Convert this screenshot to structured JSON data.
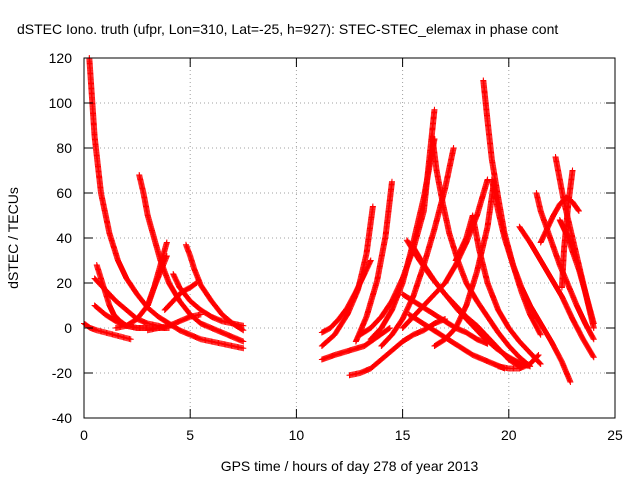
{
  "chart_data": {
    "type": "scatter",
    "title": "dSTEC Iono. truth (ufpr, Lon=310, Lat=-25, h=927): STEC-STEC_elemax in phase cont",
    "xlabel": "GPS time / hours of day 278 of year 2013",
    "ylabel": "dSTEC  / TECUs",
    "xlim": [
      0,
      25
    ],
    "ylim": [
      -40,
      120
    ],
    "xticks": [
      0,
      5,
      10,
      15,
      20,
      25
    ],
    "yticks": [
      -40,
      -20,
      0,
      20,
      40,
      60,
      80,
      100,
      120
    ],
    "grid": true,
    "marker": "+",
    "color": "#ff0000",
    "series": [
      {
        "x": [
          0.25,
          0.5,
          0.8,
          1.2,
          1.6,
          2.0,
          2.5,
          3.0,
          3.5,
          4.0,
          4.5,
          5.0,
          5.5,
          6.0,
          6.5,
          7.0,
          7.5
        ],
        "y": [
          120,
          85,
          60,
          42,
          30,
          22,
          15,
          9,
          5,
          2,
          -1,
          -3,
          -5,
          -6,
          -7,
          -8,
          -9
        ]
      },
      {
        "x": [
          0.0,
          0.3,
          0.6,
          1.0,
          1.4,
          1.8,
          2.2
        ],
        "y": [
          2,
          0,
          -1,
          -2,
          -3,
          -4,
          -5
        ]
      },
      {
        "x": [
          0.6,
          0.8,
          1.0,
          1.2,
          1.4,
          1.7,
          2.0,
          2.5,
          3.0
        ],
        "y": [
          28,
          22,
          16,
          10,
          6,
          3,
          1,
          0,
          0
        ]
      },
      {
        "x": [
          0.5,
          1.0,
          1.5,
          2.0,
          2.5,
          3.0,
          3.5,
          3.8
        ],
        "y": [
          22,
          17,
          12,
          8,
          4,
          2,
          1,
          0
        ]
      },
      {
        "x": [
          0.5,
          1.0,
          1.5,
          2.0,
          2.5,
          3.0,
          3.5,
          4.0
        ],
        "y": [
          10,
          6,
          3,
          1,
          0,
          0,
          0,
          0
        ]
      },
      {
        "x": [
          2.6,
          2.8,
          3.0,
          3.3,
          3.6,
          4.0,
          4.5,
          5.0,
          5.5,
          6.0,
          6.5,
          7.0,
          7.5
        ],
        "y": [
          68,
          60,
          50,
          40,
          30,
          20,
          12,
          6,
          2,
          0,
          -2,
          -4,
          -6
        ]
      },
      {
        "x": [
          1.5,
          2.0,
          2.5,
          3.0,
          3.3,
          3.6,
          3.9
        ],
        "y": [
          0,
          1,
          4,
          10,
          18,
          28,
          38
        ]
      },
      {
        "x": [
          3.0,
          3.3,
          3.6,
          3.9
        ],
        "y": [
          10,
          18,
          25,
          32
        ]
      },
      {
        "x": [
          4.2,
          4.5,
          5.0,
          5.5,
          6.0,
          6.5,
          7.0,
          7.5
        ],
        "y": [
          24,
          18,
          12,
          8,
          5,
          3,
          2,
          1
        ]
      },
      {
        "x": [
          4.8,
          5.0,
          5.2,
          5.5,
          6.0,
          6.5,
          7.0,
          7.5
        ],
        "y": [
          37,
          32,
          26,
          19,
          12,
          6,
          2,
          -1
        ]
      },
      {
        "x": [
          3.8,
          4.2,
          4.6,
          5.0,
          5.3
        ],
        "y": [
          8,
          12,
          16,
          18,
          20
        ]
      },
      {
        "x": [
          3.0,
          3.5,
          4.0,
          4.5,
          5.0,
          5.5
        ],
        "y": [
          -1,
          0,
          1,
          3,
          5,
          6
        ]
      },
      {
        "x": [
          11.2,
          11.6,
          12.0,
          12.4,
          12.8,
          13.2,
          13.5
        ],
        "y": [
          -2,
          0,
          4,
          9,
          16,
          24,
          30
        ]
      },
      {
        "x": [
          11.2,
          11.8,
          12.4,
          12.9,
          13.3,
          13.6
        ],
        "y": [
          -8,
          -3,
          6,
          17,
          33,
          54
        ]
      },
      {
        "x": [
          11.2,
          11.8,
          12.5,
          13.2,
          13.8,
          14.4
        ],
        "y": [
          -14,
          -12,
          -10,
          -8,
          -4,
          0
        ]
      },
      {
        "x": [
          12.5,
          13.0,
          13.5,
          14.0,
          14.5,
          15.0,
          15.5,
          16.0,
          16.5,
          17.0
        ],
        "y": [
          -21,
          -20,
          -18,
          -14,
          -10,
          -6,
          -3,
          -1,
          2,
          4
        ]
      },
      {
        "x": [
          12.8,
          13.3,
          13.8,
          14.2,
          14.5
        ],
        "y": [
          -6,
          5,
          21,
          41,
          65
        ]
      },
      {
        "x": [
          13.0,
          13.5,
          14.0,
          14.5,
          15.0,
          15.5,
          16.0,
          16.5
        ],
        "y": [
          -3,
          0,
          5,
          12,
          22,
          35,
          52,
          97
        ]
      },
      {
        "x": [
          13.5,
          14.0,
          14.5,
          15.0,
          15.5,
          16.0,
          16.5
        ],
        "y": [
          -5,
          0,
          8,
          20,
          38,
          58,
          84
        ]
      },
      {
        "x": [
          14.0,
          14.5,
          15.0,
          15.5,
          16.0,
          16.5,
          17.0,
          17.4
        ],
        "y": [
          -8,
          -3,
          4,
          14,
          28,
          44,
          62,
          80
        ]
      },
      {
        "x": [
          15.0,
          15.5,
          16.0,
          16.5,
          17.0,
          17.5,
          18.0,
          18.5,
          19.0
        ],
        "y": [
          0,
          5,
          10,
          15,
          20,
          28,
          38,
          50,
          66
        ]
      },
      {
        "x": [
          16.5,
          17.0,
          17.5,
          18.0,
          18.5,
          19.0,
          19.3
        ],
        "y": [
          -8,
          -5,
          0,
          10,
          25,
          45,
          65
        ]
      },
      {
        "x": [
          15.5,
          16.0,
          16.5,
          17.0,
          17.5,
          18.0,
          18.5,
          19.0,
          19.5,
          20.0,
          20.5
        ],
        "y": [
          36,
          28,
          21,
          15,
          10,
          5,
          1,
          -4,
          -9,
          -14,
          -17
        ]
      },
      {
        "x": [
          15.2,
          15.8,
          16.4,
          17.0,
          17.6,
          18.2,
          18.8,
          19.4,
          20.0,
          20.6,
          21.0
        ],
        "y": [
          39,
          30,
          22,
          15,
          8,
          2,
          -4,
          -9,
          -13,
          -16,
          -17
        ]
      },
      {
        "x": [
          15.3,
          15.8,
          16.3,
          16.8,
          17.3,
          17.8,
          18.3,
          18.8,
          19.3,
          19.8
        ],
        "y": [
          6,
          3,
          0,
          -3,
          -6,
          -9,
          -12,
          -14,
          -16,
          -18
        ]
      },
      {
        "x": [
          15.0,
          15.5,
          16.0,
          16.5,
          17.0,
          17.5,
          18.0,
          18.5,
          19.0
        ],
        "y": [
          15,
          12,
          9,
          6,
          3,
          0,
          -2,
          -5,
          -7
        ]
      },
      {
        "x": [
          16.4,
          16.6,
          16.9,
          17.2,
          17.6,
          18.0,
          18.5,
          19.0,
          19.5,
          20.0,
          20.5,
          21.0
        ],
        "y": [
          85,
          70,
          55,
          42,
          30,
          20,
          12,
          5,
          -2,
          -8,
          -13,
          -17
        ]
      },
      {
        "x": [
          18.8,
          19.0,
          19.2,
          19.5,
          19.8,
          20.2,
          20.6,
          21.0,
          21.5
        ],
        "y": [
          110,
          92,
          75,
          58,
          42,
          28,
          16,
          6,
          -3
        ]
      },
      {
        "x": [
          17.5,
          18.0,
          18.3,
          18.6,
          19.0,
          19.5,
          20.0,
          20.5,
          21.0,
          21.5
        ],
        "y": [
          30,
          40,
          50,
          35,
          20,
          8,
          0,
          -6,
          -11,
          -16
        ]
      },
      {
        "x": [
          19.2,
          19.5,
          19.8,
          20.2,
          20.6,
          21.0,
          21.5,
          22.0,
          22.5,
          22.9
        ],
        "y": [
          66,
          52,
          40,
          28,
          18,
          10,
          2,
          -6,
          -15,
          -24
        ]
      },
      {
        "x": [
          19.5,
          20.0,
          20.5,
          21.0,
          21.4
        ],
        "y": [
          -17,
          -18,
          -18,
          -16,
          -12
        ]
      },
      {
        "x": [
          21.3,
          21.5,
          21.8,
          22.1,
          22.4,
          22.8,
          23.2,
          23.6,
          24.0
        ],
        "y": [
          60,
          52,
          44,
          36,
          28,
          19,
          10,
          2,
          -5
        ]
      },
      {
        "x": [
          21.5,
          21.8,
          22.1,
          22.4,
          22.7,
          23.0,
          23.3
        ],
        "y": [
          38,
          44,
          50,
          55,
          58,
          56,
          52
        ]
      },
      {
        "x": [
          22.2,
          22.4,
          22.6,
          22.9,
          23.2,
          23.5,
          23.8,
          24.0
        ],
        "y": [
          76,
          66,
          56,
          44,
          32,
          20,
          8,
          0
        ]
      },
      {
        "x": [
          22.4,
          22.6,
          22.8,
          23.0,
          23.3,
          23.6,
          24.0
        ],
        "y": [
          48,
          44,
          40,
          34,
          26,
          16,
          2
        ]
      },
      {
        "x": [
          22.5,
          22.6,
          22.8,
          23.0
        ],
        "y": [
          18,
          35,
          55,
          70
        ]
      },
      {
        "x": [
          20.5,
          21.0,
          21.5,
          22.0,
          22.5,
          23.0,
          23.5,
          24.0
        ],
        "y": [
          45,
          38,
          30,
          22,
          14,
          4,
          -5,
          -13
        ]
      }
    ]
  }
}
